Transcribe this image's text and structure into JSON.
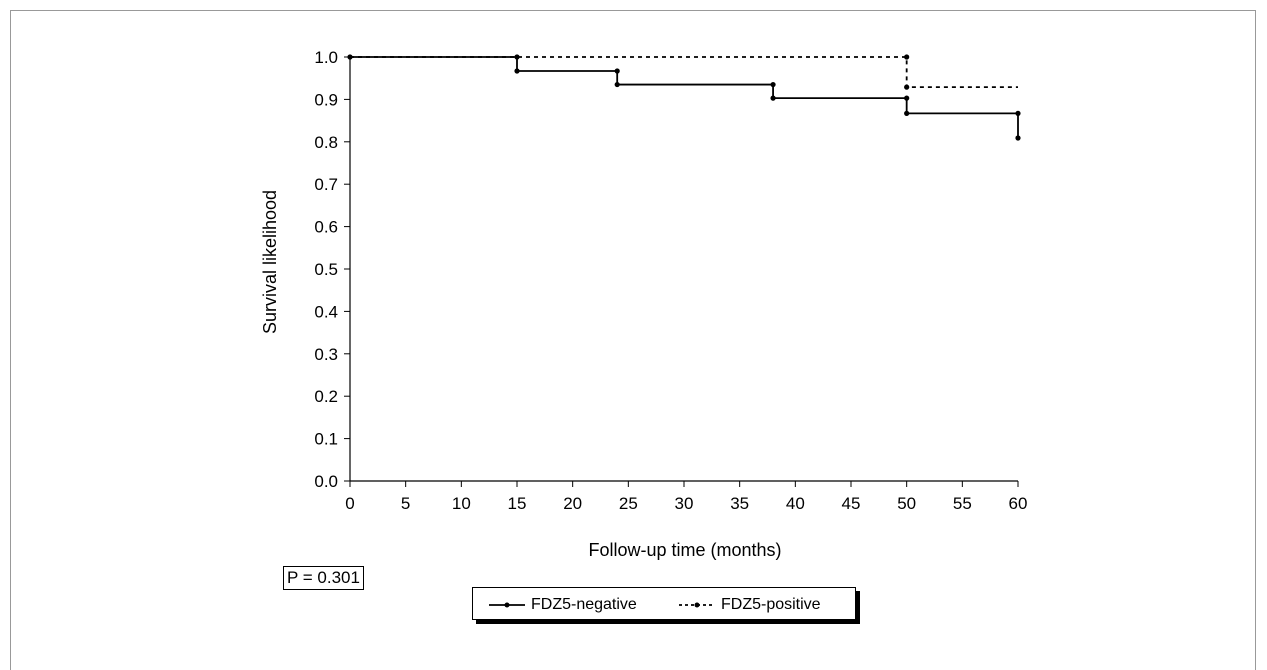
{
  "chart_data": {
    "type": "line",
    "step": true,
    "xlabel": "Follow-up time (months)",
    "ylabel": "Survival likelihood",
    "xlim": [
      0,
      60
    ],
    "ylim": [
      0,
      1
    ],
    "xticks": [
      "0",
      "5",
      "10",
      "15",
      "20",
      "25",
      "30",
      "35",
      "40",
      "45",
      "50",
      "55",
      "60"
    ],
    "yticks": [
      "0.0",
      "0.1",
      "0.2",
      "0.3",
      "0.4",
      "0.5",
      "0.6",
      "0.7",
      "0.8",
      "0.9",
      "1.0"
    ],
    "grid": false,
    "legend_position": "bottom",
    "series": [
      {
        "name": "FDZ5-negative",
        "style": "solid",
        "x": [
          0,
          15,
          24,
          38,
          50,
          60
        ],
        "y": [
          1.0,
          0.967,
          0.935,
          0.903,
          0.867,
          0.809
        ],
        "markers": [
          [
            15,
            1.0
          ],
          [
            15,
            0.967
          ],
          [
            24,
            0.967
          ],
          [
            24,
            0.935
          ],
          [
            38,
            0.935
          ],
          [
            38,
            0.903
          ],
          [
            50,
            0.903
          ],
          [
            50,
            0.867
          ],
          [
            60,
            0.867
          ],
          [
            60,
            0.809
          ]
        ]
      },
      {
        "name": "FDZ5-positive",
        "style": "dashed",
        "x": [
          0,
          50,
          60
        ],
        "y": [
          1.0,
          0.929,
          0.929
        ],
        "markers": [
          [
            0,
            1.0
          ],
          [
            50,
            1.0
          ],
          [
            50,
            0.929
          ]
        ]
      }
    ],
    "annotation": "P = 0.301"
  }
}
